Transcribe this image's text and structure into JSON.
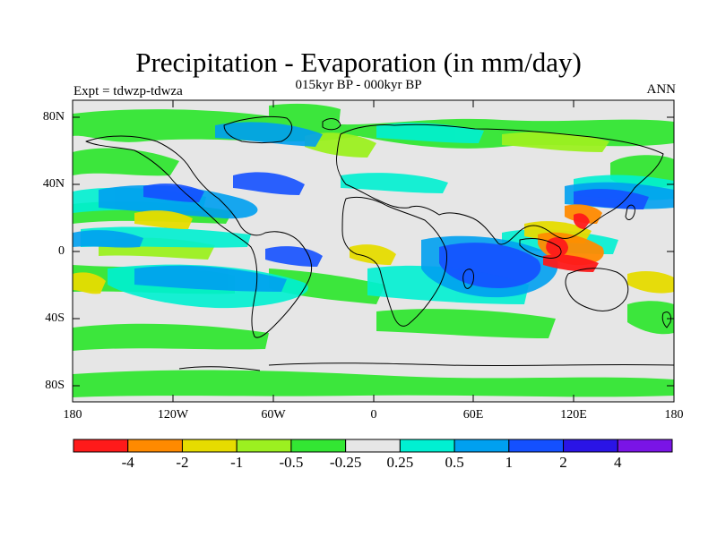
{
  "figure": {
    "title": "Precipitation - Evaporation (in mm/day)",
    "subtitle": "015kyr BP - 000kyr BP",
    "left_label": "Expt = tdwzp-tdwza",
    "right_label": "ANN"
  },
  "axes": {
    "y_ticks": [
      "80N",
      "40N",
      "0",
      "40S",
      "80S"
    ],
    "x_ticks": [
      "180",
      "120W",
      "60W",
      "0",
      "60E",
      "120E",
      "180"
    ]
  },
  "colorbar": {
    "labels": [
      "-4",
      "-2",
      "-1",
      "-0.5",
      "-0.25",
      "0.25",
      "0.5",
      "1",
      "2",
      "4"
    ],
    "colors": [
      "#ff1a1a",
      "#ff8a00",
      "#e6dc00",
      "#9cf020",
      "#33e633",
      "#e6e6e6",
      "#00f0d2",
      "#00a0f0",
      "#1450ff",
      "#2a14e6",
      "#7a14e6"
    ]
  },
  "colors": {
    "background": "#e6e6e6",
    "coastline": "#000000"
  }
}
